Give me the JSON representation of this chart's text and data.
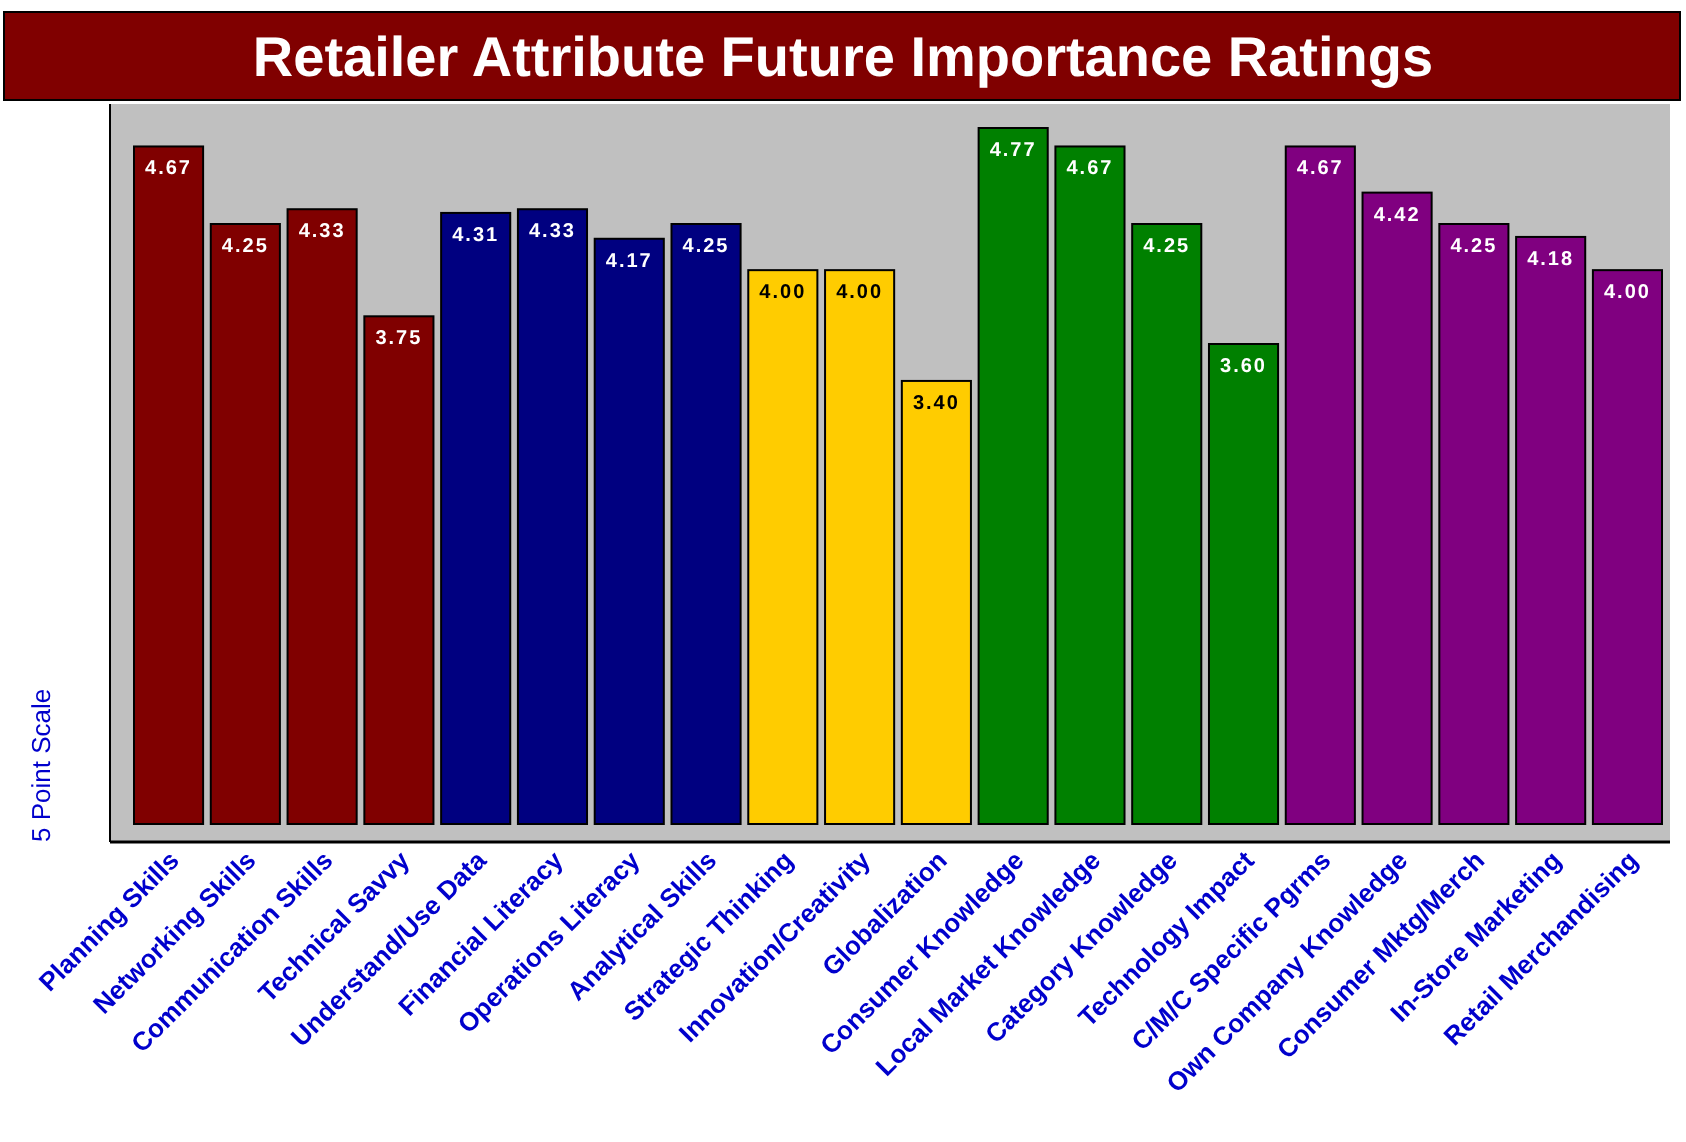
{
  "chart_data": {
    "type": "bar",
    "title": "Retailer Attribute Future Importance Ratings",
    "ylabel": "5 Point Scale",
    "categories": [
      "Planning Skills",
      "Networking Skills",
      "Communication Skills",
      "Technical Savvy",
      "Understand/Use Data",
      "Financial Literacy",
      "Operations Literacy",
      "Analytical Skills",
      "Strategic Thinking",
      "Innovation/Creativity",
      "Globalization",
      "Consumer Knowledge",
      "Local Market Knowledge",
      "Category Knowledge",
      "Technology Impact",
      "C/M/C Specific Pgrms",
      "Own Company Knowledge",
      "Consumer Mktg/Merch",
      "In-Store Marketing",
      "Retail Merchandising"
    ],
    "values": [
      4.67,
      4.25,
      4.33,
      3.75,
      4.31,
      4.33,
      4.17,
      4.25,
      4.0,
      4.0,
      3.4,
      4.77,
      4.67,
      4.25,
      3.6,
      4.67,
      4.42,
      4.25,
      4.18,
      4.0
    ],
    "colors": [
      "#800000",
      "#800000",
      "#800000",
      "#800000",
      "#000080",
      "#000080",
      "#000080",
      "#000080",
      "#ffcc00",
      "#ffcc00",
      "#ffcc00",
      "#008000",
      "#008000",
      "#008000",
      "#008000",
      "#800080",
      "#800080",
      "#800080",
      "#800080",
      "#800080"
    ],
    "value_labels": [
      "4.67",
      "4.25",
      "4.33",
      "3.75",
      "4.31",
      "4.33",
      "4.17",
      "4.25",
      "4.00",
      "4.00",
      "3.40",
      "4.77",
      "4.67",
      "4.25",
      "3.60",
      "4.67",
      "4.42",
      "4.25",
      "4.18",
      "4.00"
    ],
    "ylim": [
      1,
      4.9
    ],
    "tick_labels": "x"
  }
}
